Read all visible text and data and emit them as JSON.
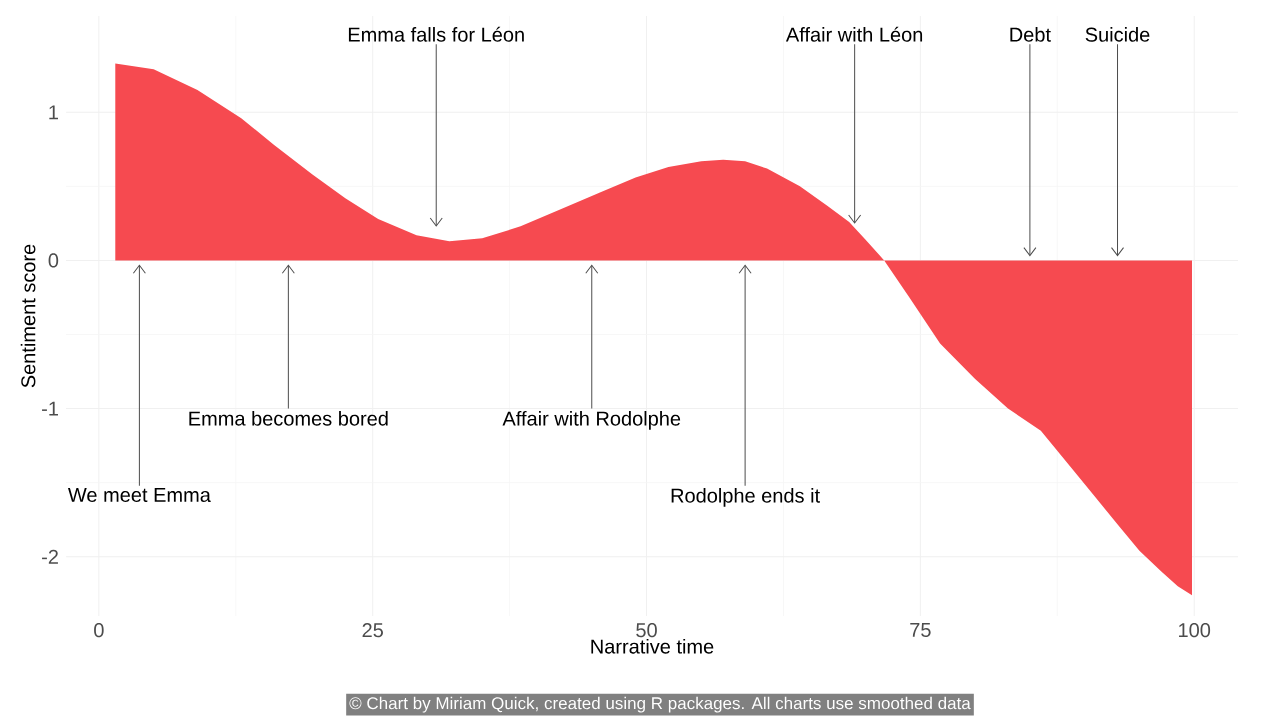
{
  "chart_data": {
    "type": "area",
    "xlabel": "Narrative time",
    "ylabel": "Sentiment score",
    "x": [
      1.5,
      5,
      9,
      13,
      16,
      19.5,
      22.5,
      25.5,
      29,
      32,
      35,
      38.5,
      42,
      45.8,
      49,
      52,
      55,
      57,
      59,
      61,
      64,
      66.5,
      68.5,
      70,
      71.7,
      74,
      76.8,
      80,
      83,
      86,
      89,
      91,
      93.2,
      95,
      97,
      98.5,
      99.8
    ],
    "series": [
      {
        "color": "#f64a50",
        "values": [
          1.33,
          1.29,
          1.15,
          0.96,
          0.78,
          0.58,
          0.42,
          0.28,
          0.17,
          0.13,
          0.15,
          0.23,
          0.34,
          0.46,
          0.56,
          0.63,
          0.67,
          0.68,
          0.67,
          0.62,
          0.5,
          0.37,
          0.26,
          0.14,
          0,
          -0.25,
          -0.56,
          -0.8,
          -1.0,
          -1.15,
          -1.42,
          -1.6,
          -1.8,
          -1.96,
          -2.1,
          -2.2,
          -2.26
        ]
      }
    ],
    "xlim": [
      -3,
      104
    ],
    "ylim": [
      -2.4,
      1.65
    ],
    "xticks": [
      0,
      25,
      50,
      75,
      100
    ],
    "yticks": [
      -2,
      -1,
      0,
      1
    ],
    "grid": true,
    "annotations": [
      {
        "text": "We meet Emma",
        "x": 3.7,
        "y": 0
      },
      {
        "text": "Emma becomes bored",
        "x": 17.3,
        "y": 0
      },
      {
        "text": "Emma falls for Léon",
        "x": 30.8,
        "y": 0.2
      },
      {
        "text": "Affair with Rodolphe",
        "x": 45,
        "y": 0
      },
      {
        "text": "Rodolphe ends it",
        "x": 59,
        "y": 0
      },
      {
        "text": "Affair with Léon",
        "x": 69,
        "y": 0.22
      },
      {
        "text": "Debt",
        "x": 85,
        "y": 0
      },
      {
        "text": "Suicide",
        "x": 93,
        "y": 0
      },
      "© Chart by Miriam Quick, created using R packages. All charts use smoothed data"
    ]
  }
}
